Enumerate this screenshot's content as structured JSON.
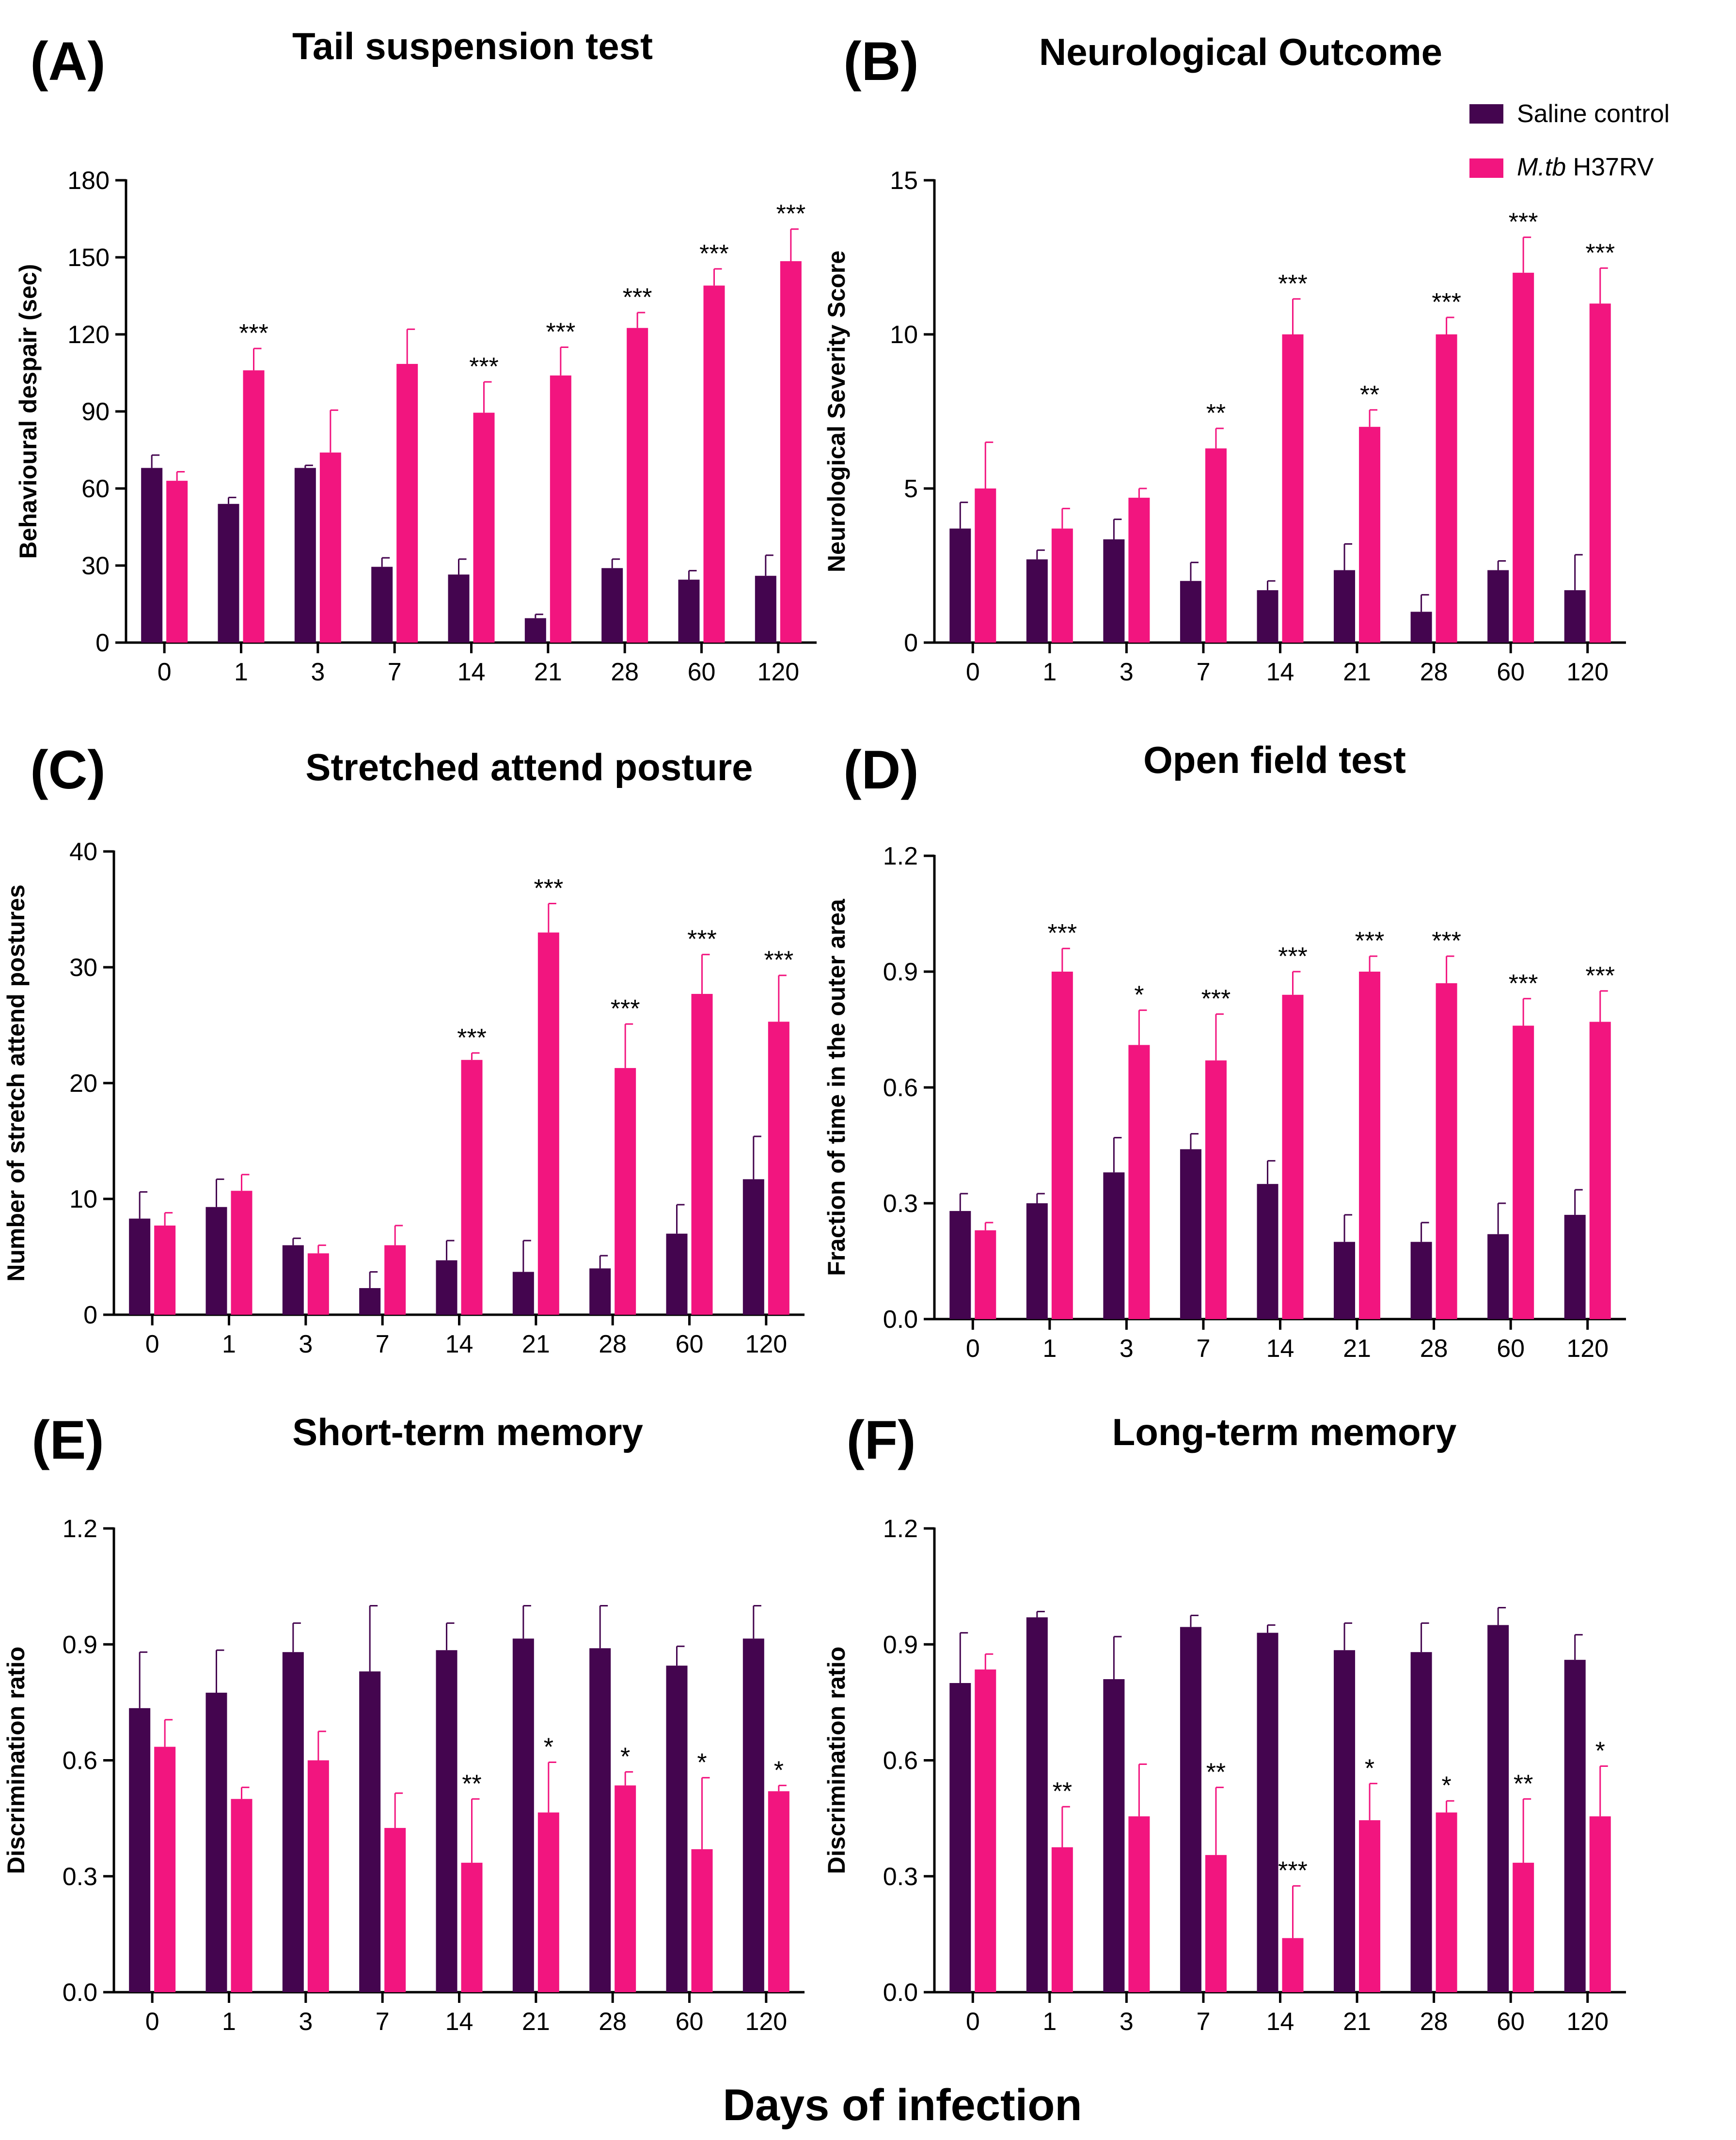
{
  "colors": {
    "saline": "#44054f",
    "mtb": "#f2157f"
  },
  "legend": {
    "saline_label": "Saline control",
    "mtb_label_italic": "M.tb",
    "mtb_label_rest": " H37RV"
  },
  "x_axis_title": "Days of infection",
  "chart_data": [
    {
      "type": "bar",
      "letter": "(A)",
      "title": "Tail suspension test",
      "ylabel": "Behavioural despair  (sec)",
      "xlabel": "Days of infection",
      "categories": [
        "0",
        "1",
        "3",
        "7",
        "14",
        "21",
        "28",
        "60",
        "120"
      ],
      "ylim": [
        0,
        180
      ],
      "yticks": [
        0,
        30,
        60,
        90,
        120,
        150,
        180
      ],
      "ytick_labels": [
        "0",
        "30",
        "60",
        "90",
        "120",
        "150",
        "180"
      ],
      "series": [
        {
          "name": "Saline control",
          "values": [
            68,
            54,
            68,
            29.5,
            26.5,
            9.5,
            29,
            24.5,
            26
          ],
          "errors": [
            5,
            2.5,
            1,
            3.5,
            6,
            1.5,
            3.5,
            3.5,
            8
          ]
        },
        {
          "name": "M.tb H37RV",
          "values": [
            63,
            106,
            74,
            108.5,
            89.5,
            104,
            122.5,
            139,
            148.5
          ],
          "errors": [
            3.5,
            8.5,
            16.5,
            13.5,
            12,
            11,
            6,
            6.5,
            12.5
          ]
        }
      ],
      "significance": [
        "",
        "***",
        "",
        "",
        "***",
        "***",
        "***",
        "***",
        "***"
      ]
    },
    {
      "type": "bar",
      "letter": "(B)",
      "title": "Neurological Outcome",
      "ylabel": "Neurological Severity Score",
      "xlabel": "Days of infection",
      "categories": [
        "0",
        "1",
        "3",
        "7",
        "14",
        "21",
        "28",
        "60",
        "120"
      ],
      "ylim": [
        0,
        15
      ],
      "yticks": [
        0,
        5,
        10,
        15
      ],
      "ytick_labels": [
        "0",
        "5",
        "10",
        "15"
      ],
      "series": [
        {
          "name": "Saline control",
          "values": [
            3.7,
            2.7,
            3.35,
            2.0,
            1.7,
            2.35,
            1.0,
            2.35,
            1.7
          ],
          "errors": [
            0.85,
            0.3,
            0.65,
            0.6,
            0.3,
            0.85,
            0.55,
            0.3,
            1.15
          ]
        },
        {
          "name": "M.tb H37RV",
          "values": [
            5.0,
            3.7,
            4.7,
            6.3,
            10.0,
            7.0,
            10.0,
            12.0,
            11.0
          ],
          "errors": [
            1.5,
            0.65,
            0.3,
            0.65,
            1.15,
            0.55,
            0.55,
            1.15,
            1.15
          ]
        }
      ],
      "significance": [
        "",
        "",
        "",
        "**",
        "***",
        "**",
        "***",
        "***",
        "***"
      ]
    },
    {
      "type": "bar",
      "letter": "(C)",
      "title": "Stretched attend posture",
      "ylabel": "Number of stretch attend postures",
      "xlabel": "Days of infection",
      "categories": [
        "0",
        "1",
        "3",
        "7",
        "14",
        "21",
        "28",
        "60",
        "120"
      ],
      "ylim": [
        0,
        40
      ],
      "yticks": [
        0,
        10,
        20,
        30,
        40
      ],
      "ytick_labels": [
        "0",
        "10",
        "20",
        "30",
        "40"
      ],
      "series": [
        {
          "name": "Saline control",
          "values": [
            8.3,
            9.3,
            6.0,
            2.3,
            4.7,
            3.7,
            4.0,
            7.0,
            11.7
          ],
          "errors": [
            2.3,
            2.4,
            0.6,
            1.4,
            1.7,
            2.7,
            1.1,
            2.5,
            3.7
          ]
        },
        {
          "name": "M.tb H37RV",
          "values": [
            7.7,
            10.7,
            5.3,
            6.0,
            22.0,
            33.0,
            21.3,
            27.7,
            25.3
          ],
          "errors": [
            1.1,
            1.4,
            0.7,
            1.7,
            0.6,
            2.5,
            3.8,
            3.4,
            4.0
          ]
        }
      ],
      "significance": [
        "",
        "",
        "",
        "",
        "***",
        "***",
        "***",
        "***",
        "***"
      ]
    },
    {
      "type": "bar",
      "letter": "(D)",
      "title": "Open field test",
      "ylabel": "Fraction of time in the outer area",
      "xlabel": "Days of infection",
      "categories": [
        "0",
        "1",
        "3",
        "7",
        "14",
        "21",
        "28",
        "60",
        "120"
      ],
      "ylim": [
        0,
        1.2
      ],
      "yticks": [
        0,
        0.3,
        0.6,
        0.9,
        1.2
      ],
      "ytick_labels": [
        "0.0",
        "0.3",
        "0.6",
        "0.9",
        "1.2"
      ],
      "series": [
        {
          "name": "Saline control",
          "values": [
            0.28,
            0.3,
            0.38,
            0.44,
            0.35,
            0.2,
            0.2,
            0.22,
            0.27
          ],
          "errors": [
            0.045,
            0.025,
            0.09,
            0.04,
            0.06,
            0.07,
            0.05,
            0.08,
            0.065
          ]
        },
        {
          "name": "M.tb H37RV",
          "values": [
            0.23,
            0.9,
            0.71,
            0.67,
            0.84,
            0.9,
            0.87,
            0.76,
            0.77
          ],
          "errors": [
            0.02,
            0.06,
            0.09,
            0.12,
            0.06,
            0.04,
            0.07,
            0.07,
            0.08
          ]
        }
      ],
      "significance": [
        "",
        "***",
        "*",
        "***",
        "***",
        "***",
        "***",
        "***",
        "***"
      ]
    },
    {
      "type": "bar",
      "letter": "(E)",
      "title": "Short-term memory",
      "ylabel": "Discrimination ratio",
      "xlabel": "Days of infection",
      "categories": [
        "0",
        "1",
        "3",
        "7",
        "14",
        "21",
        "28",
        "60",
        "120"
      ],
      "ylim": [
        0,
        1.2
      ],
      "yticks": [
        0,
        0.3,
        0.6,
        0.9,
        1.2
      ],
      "ytick_labels": [
        "0.0",
        "0.3",
        "0.6",
        "0.9",
        "1.2"
      ],
      "series": [
        {
          "name": "Saline control",
          "values": [
            0.735,
            0.775,
            0.88,
            0.83,
            0.885,
            0.915,
            0.89,
            0.845,
            0.915
          ],
          "errors": [
            0.145,
            0.11,
            0.075,
            0.17,
            0.07,
            0.085,
            0.11,
            0.05,
            0.085
          ]
        },
        {
          "name": "M.tb H37RV",
          "values": [
            0.635,
            0.5,
            0.6,
            0.425,
            0.335,
            0.465,
            0.535,
            0.37,
            0.52
          ],
          "errors": [
            0.07,
            0.03,
            0.075,
            0.09,
            0.165,
            0.13,
            0.035,
            0.185,
            0.015
          ]
        }
      ],
      "significance": [
        "",
        "",
        "",
        "",
        "**",
        "*",
        "*",
        "*",
        "*"
      ]
    },
    {
      "type": "bar",
      "letter": "(F)",
      "title": "Long-term memory",
      "ylabel": "Discrimination ratio",
      "xlabel": "Days of infection",
      "categories": [
        "0",
        "1",
        "3",
        "7",
        "14",
        "21",
        "28",
        "60",
        "120"
      ],
      "ylim": [
        0,
        1.2
      ],
      "yticks": [
        0,
        0.3,
        0.6,
        0.9,
        1.2
      ],
      "ytick_labels": [
        "0.0",
        "0.3",
        "0.6",
        "0.9",
        "1.2"
      ],
      "series": [
        {
          "name": "Saline control",
          "values": [
            0.8,
            0.97,
            0.81,
            0.945,
            0.93,
            0.885,
            0.88,
            0.95,
            0.86
          ],
          "errors": [
            0.13,
            0.015,
            0.11,
            0.03,
            0.02,
            0.07,
            0.075,
            0.045,
            0.065
          ]
        },
        {
          "name": "M.tb H37RV",
          "values": [
            0.835,
            0.375,
            0.455,
            0.355,
            0.14,
            0.445,
            0.465,
            0.335,
            0.455
          ],
          "errors": [
            0.04,
            0.105,
            0.135,
            0.175,
            0.135,
            0.095,
            0.03,
            0.165,
            0.13
          ]
        }
      ],
      "significance": [
        "",
        "**",
        "",
        "**",
        "***",
        "*",
        "*",
        "**",
        "*"
      ]
    }
  ]
}
